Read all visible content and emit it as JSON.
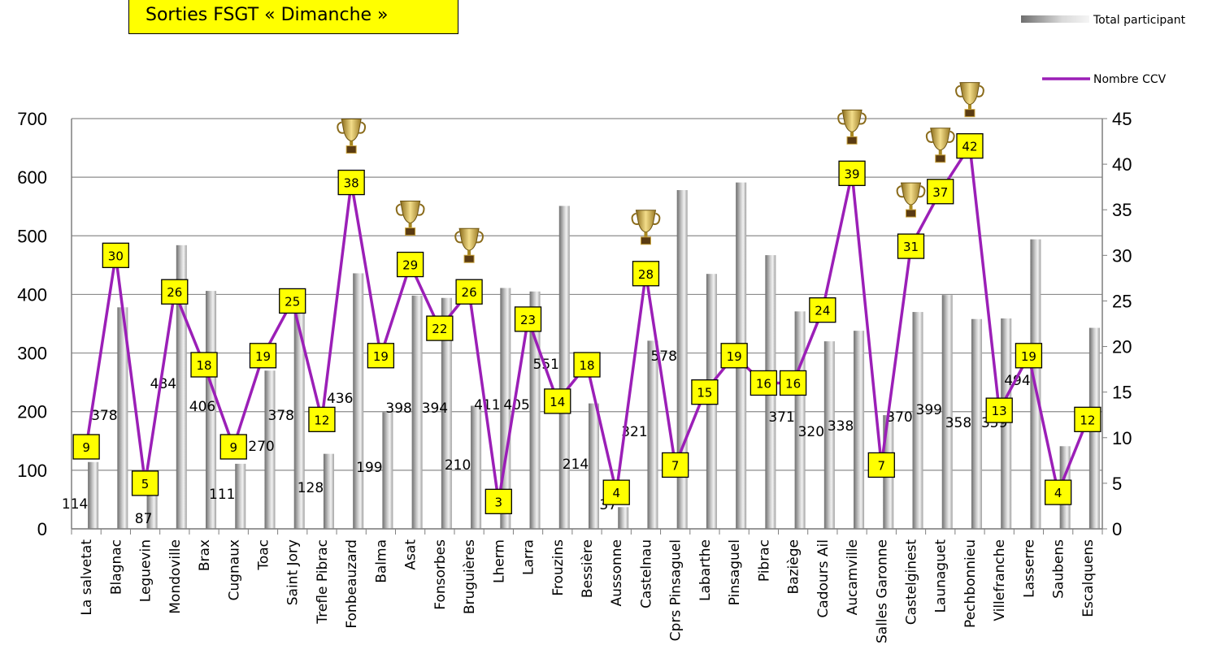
{
  "chart_data": {
    "type": "bar",
    "title": "Sorties FSGT « Dimanche »",
    "categories": [
      "La salvetat",
      "Blagnac",
      "Leguevin",
      "Mondoville",
      "Brax",
      "Cugnaux",
      "Toac",
      "Saint Jory",
      "Trefle Pibrac",
      "Fonbeauzard",
      "Balma",
      "Asat",
      "Fonsorbes",
      "Bruguières",
      "Lherm",
      "Larra",
      "Frouzins",
      "Bessière",
      "Aussonne",
      "Castelnau",
      "Cprs Pinsaguel",
      "Labarthe",
      "Pinsaguel",
      "Pibrac",
      "Baziège",
      "Cadours Ail",
      "Aucamville",
      "Salles Garonne",
      "Castelginest",
      "Launaguet",
      "Pechbonnieu",
      "Villefranche",
      "Lasserre",
      "Saubens",
      "Escalquens"
    ],
    "series": [
      {
        "name": "Total participant",
        "type": "bar",
        "axis": "left",
        "color": "#a6a6a6",
        "values": [
          114,
          378,
          87,
          484,
          406,
          111,
          270,
          378,
          128,
          436,
          199,
          398,
          394,
          210,
          411,
          405,
          551,
          214,
          37,
          321,
          578,
          435,
          591,
          467,
          371,
          320,
          338,
          194,
          370,
          399,
          358,
          359,
          494,
          141,
          343
        ]
      },
      {
        "name": "Nombre CCV",
        "type": "line",
        "axis": "right",
        "color": "#9b1fb7",
        "values": [
          9,
          30,
          5,
          26,
          18,
          9,
          19,
          25,
          12,
          38,
          19,
          29,
          22,
          26,
          3,
          23,
          14,
          18,
          4,
          28,
          7,
          15,
          19,
          16,
          16,
          24,
          39,
          7,
          31,
          37,
          42,
          13,
          19,
          4,
          12
        ]
      }
    ],
    "bar_labels": [
      "114",
      "378",
      "87",
      "484",
      "406",
      "111",
      "270",
      "378",
      "128",
      "436",
      "199",
      "398",
      "394",
      "210",
      "411",
      "405",
      "551",
      "214",
      "37",
      "321",
      "578",
      "",
      "",
      "",
      "371",
      "320",
      "338",
      "",
      "370",
      "399",
      "358",
      "359",
      "494",
      "",
      "343"
    ],
    "ylim_left": [
      0,
      700
    ],
    "yticks_left": [
      "0",
      "100",
      "200",
      "300",
      "400",
      "500",
      "600",
      "700"
    ],
    "ylim_right": [
      0,
      45
    ],
    "yticks_right": [
      "0",
      "5",
      "10",
      "15",
      "20",
      "25",
      "30",
      "35",
      "40",
      "45"
    ],
    "trophy_categories": [
      "Fonbeauzard",
      "Asat",
      "Bruguières",
      "Castelnau",
      "Aucamville",
      "Castelginest",
      "Launaguet",
      "Pechbonnieu"
    ],
    "legend_position": "top-right",
    "grid": true
  }
}
